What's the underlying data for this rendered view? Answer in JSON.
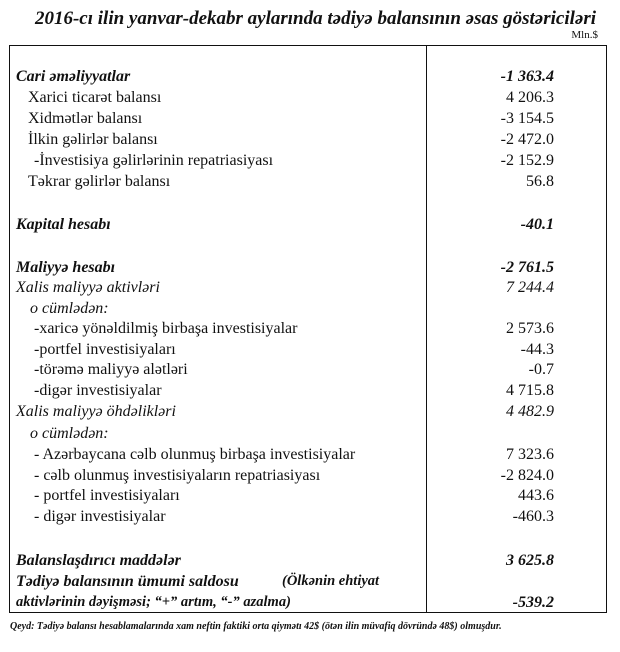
{
  "title": "2016-cı ilin yanvar-dekabr aylarında tədiyə balansının əsas göstəriciləri",
  "unit": "Mln.$",
  "rows": [
    {
      "label": "Cari əməliyyatlar",
      "value": "-1 363.4"
    },
    {
      "label": "Xarici ticarət balansı",
      "value": "4 206.3"
    },
    {
      "label": "Xidmətlər balansı",
      "value": "-3 154.5"
    },
    {
      "label": "İlkin gəlirlər balansı",
      "value": "-2 472.0"
    },
    {
      "label": "-İnvestisiya gəlirlərinin repatriasiyası",
      "value": "-2 152.9"
    },
    {
      "label": "Təkrar gəlirlər balansı",
      "value": "56.8"
    },
    {
      "label": "Kapital hesabı",
      "value": "-40.1"
    },
    {
      "label": "Maliyyə hesabı",
      "value": "-2 761.5"
    },
    {
      "label": "Xalis maliyyə aktivləri",
      "value": "7 244.4"
    },
    {
      "label": "o cümlədən:",
      "value": ""
    },
    {
      "label": "-xaricə yönəldilmiş birbaşa investisiyalar",
      "value": "2 573.6"
    },
    {
      "label": "-portfel  investisiyaları",
      "value": "-44.3"
    },
    {
      "label": "-törəmə maliyyə alətləri",
      "value": "-0.7"
    },
    {
      "label": "-digər investisiyalar",
      "value": "4 715.8"
    },
    {
      "label": "Xalis maliyyə öhdəlikləri",
      "value": "4 482.9"
    },
    {
      "label": "o cümlədən:",
      "value": ""
    },
    {
      "label": "- Azərbaycana cəlb olunmuş birbaşa investisiyalar",
      "value": "7 323.6"
    },
    {
      "label": "- cəlb olunmuş investisiyaların repatriasiyası",
      "value": "-2 824.0"
    },
    {
      "label": "- portfel investisiyaları",
      "value": "443.6"
    },
    {
      "label": "- digər investisiyalar",
      "value": "-460.3"
    },
    {
      "label": "Balanslaşdırıcı maddələr",
      "value": "3 625.8"
    },
    {
      "label": "Tədiyə balansının ümumi saldosu",
      "label_note": "(Ölkənin ehtiyat",
      "value": ""
    },
    {
      "label": "aktivlərinin dəyişməsi;   “+” artım,  “-” azalma)",
      "value": "-539.2"
    }
  ],
  "note": "Qeyd: Tədiyə balansı hesablamalarında xam neftin faktiki orta qiymətı 42$ (ötən ilin müvafiq dövründə 48$) olmuşdur."
}
